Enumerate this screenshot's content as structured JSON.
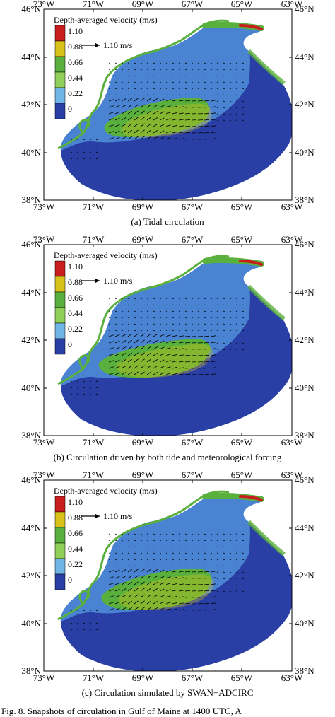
{
  "panels": [
    {
      "caption": "(a) Tidal circulation",
      "legend_title": "Depth-averaged velocity (m/s)",
      "legend_values": [
        "1.10",
        "0.88",
        "0.66",
        "0.44",
        "0.22",
        "0"
      ],
      "reference_vector": "1.10 m/s",
      "lon_ticks": [
        "73°W",
        "71°W",
        "69°W",
        "67°W",
        "65°W",
        "63°W"
      ],
      "lat_ticks": [
        "46°N",
        "44°N",
        "42°N",
        "40°N",
        "38°N"
      ]
    },
    {
      "caption": "(b) Circulation driven by both tide and meteorological forcing",
      "legend_title": "Depth-averaged velocity (m/s)",
      "legend_values": [
        "1.10",
        "0.88",
        "0.66",
        "0.44",
        "0.22",
        "0"
      ],
      "reference_vector": "1.10 m/s",
      "lon_ticks": [
        "73°W",
        "71°W",
        "69°W",
        "67°W",
        "65°W",
        "63°W"
      ],
      "lat_ticks": [
        "46°N",
        "44°N",
        "42°N",
        "40°N",
        "38°N"
      ]
    },
    {
      "caption": "(c) Circulation simulated by SWAN+ADCIRC",
      "legend_title": "Depth-averaged velocity (m/s)",
      "legend_values": [
        "1.10",
        "0.88",
        "0.66",
        "0.44",
        "0.22",
        "0"
      ],
      "reference_vector": "1.10 m/s",
      "lon_ticks": [
        "73°W",
        "71°W",
        "69°W",
        "67°W",
        "65°W",
        "63°W"
      ],
      "lat_ticks": [
        "46°N",
        "44°N",
        "42°N",
        "40°N",
        "38°N"
      ]
    }
  ],
  "legend_colors": [
    "#c81e1e",
    "#d8c21a",
    "#5ab03c",
    "#8fcf5a",
    "#6fb6e6",
    "#2a3fa6"
  ],
  "ocean_color": "#2a3fa6",
  "shelf_color": "#4f8fd8",
  "land_color": "#ffffff",
  "footer": "Fig. 8. Snapshots of circulation in Gulf of Maine at 1400 UTC, A"
}
